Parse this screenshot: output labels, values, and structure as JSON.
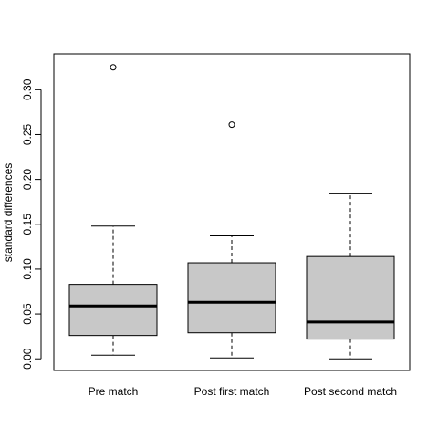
{
  "chart_data": {
    "type": "boxplot",
    "title": "",
    "xlabel": "",
    "ylabel": "standard differences",
    "ylim": [
      -0.013,
      0.34
    ],
    "yticks": [
      "0.00",
      "0.05",
      "0.10",
      "0.15",
      "0.20",
      "0.25",
      "0.30"
    ],
    "yticks_values": [
      0.0,
      0.05,
      0.1,
      0.15,
      0.2,
      0.25,
      0.3
    ],
    "categories": [
      "Pre match",
      "Post first match",
      "Post second match"
    ],
    "boxes": [
      {
        "label": "Pre match",
        "whisker_low": 0.004,
        "q1": 0.026,
        "median": 0.059,
        "q3": 0.083,
        "whisker_high": 0.148,
        "outliers": [
          0.325
        ]
      },
      {
        "label": "Post first match",
        "whisker_low": 0.001,
        "q1": 0.029,
        "median": 0.063,
        "q3": 0.107,
        "whisker_high": 0.137,
        "outliers": [
          0.261
        ]
      },
      {
        "label": "Post second match",
        "whisker_low": 0.0,
        "q1": 0.022,
        "median": 0.041,
        "q3": 0.114,
        "whisker_high": 0.184,
        "outliers": []
      }
    ],
    "box_fill": "#c8c8c8",
    "line_color": "#000000",
    "grid": false,
    "legend": "none"
  }
}
